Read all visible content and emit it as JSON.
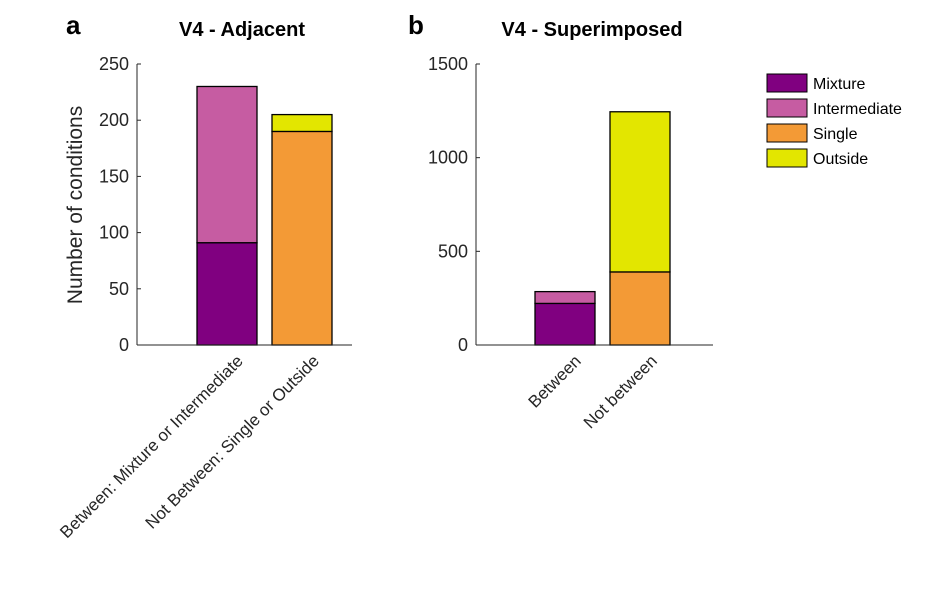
{
  "colors": {
    "Mixture": "#800080",
    "Intermediate": "#c65ca2",
    "Single": "#f39a36",
    "Outside": "#e3e600"
  },
  "legend": {
    "placement": "right",
    "items": [
      "Mixture",
      "Intermediate",
      "Single",
      "Outside"
    ]
  },
  "chart_data": [
    {
      "type": "bar",
      "stacked": true,
      "panel_label": "a",
      "title": "V4 - Adjacent",
      "xlabel": "",
      "ylabel": "Number of conditions",
      "ylim": [
        0,
        250
      ],
      "yticks": [
        0,
        50,
        100,
        150,
        200,
        250
      ],
      "categories": [
        "Between: Mixture or Intermediate",
        "Not Between: Single or Outside"
      ],
      "series": [
        {
          "name": "Mixture",
          "values": [
            91,
            0
          ]
        },
        {
          "name": "Intermediate",
          "values": [
            139,
            0
          ]
        },
        {
          "name": "Single",
          "values": [
            0,
            190
          ]
        },
        {
          "name": "Outside",
          "values": [
            0,
            15
          ]
        }
      ]
    },
    {
      "type": "bar",
      "stacked": true,
      "panel_label": "b",
      "title": "V4 - Superimposed",
      "xlabel": "",
      "ylabel": "",
      "ylim": [
        0,
        1500
      ],
      "yticks": [
        0,
        500,
        1000,
        1500
      ],
      "categories": [
        "Between",
        "Not between"
      ],
      "series": [
        {
          "name": "Mixture",
          "values": [
            222,
            0
          ]
        },
        {
          "name": "Intermediate",
          "values": [
            63,
            0
          ]
        },
        {
          "name": "Single",
          "values": [
            0,
            390
          ]
        },
        {
          "name": "Outside",
          "values": [
            0,
            855
          ]
        }
      ]
    }
  ]
}
